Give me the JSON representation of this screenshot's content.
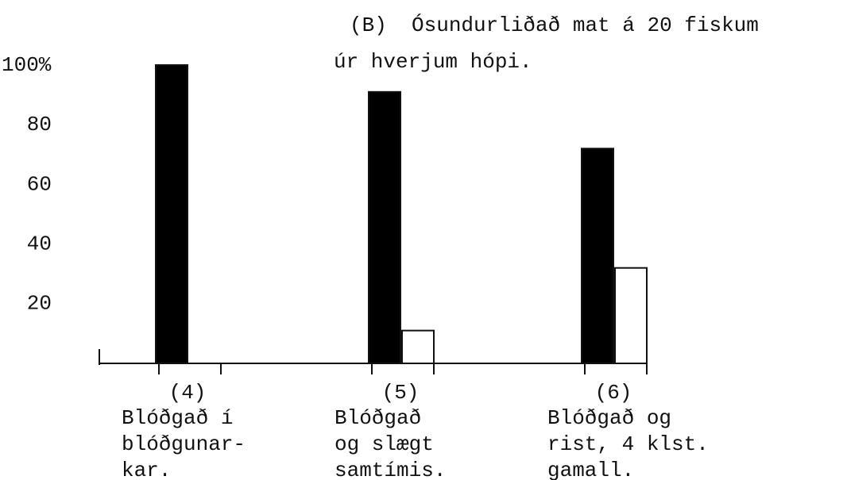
{
  "chart_data": {
    "type": "bar",
    "title": [
      "(B)  Ósundurliðað mat á 20 fiskum",
      "úr hverjum hópi."
    ],
    "categories": [
      "(4)",
      "(5)",
      "(6)"
    ],
    "category_descriptions": [
      [
        "Blóðgað í",
        "blóðgunar-",
        "kar."
      ],
      [
        "Blóðgað",
        "og slægt",
        "samtímis."
      ],
      [
        "Blóðgað og",
        "rist, 4 klst.",
        "gamall."
      ]
    ],
    "series": [
      {
        "color": "#000000",
        "values": [
          100,
          91,
          72
        ]
      },
      {
        "color": "#ffffff",
        "values": [
          0,
          11,
          32
        ]
      }
    ],
    "ylim": [
      0,
      100
    ],
    "yticks": [
      20,
      40,
      60,
      80,
      {
        "value": 100,
        "label": "100%"
      }
    ],
    "grid": false
  }
}
